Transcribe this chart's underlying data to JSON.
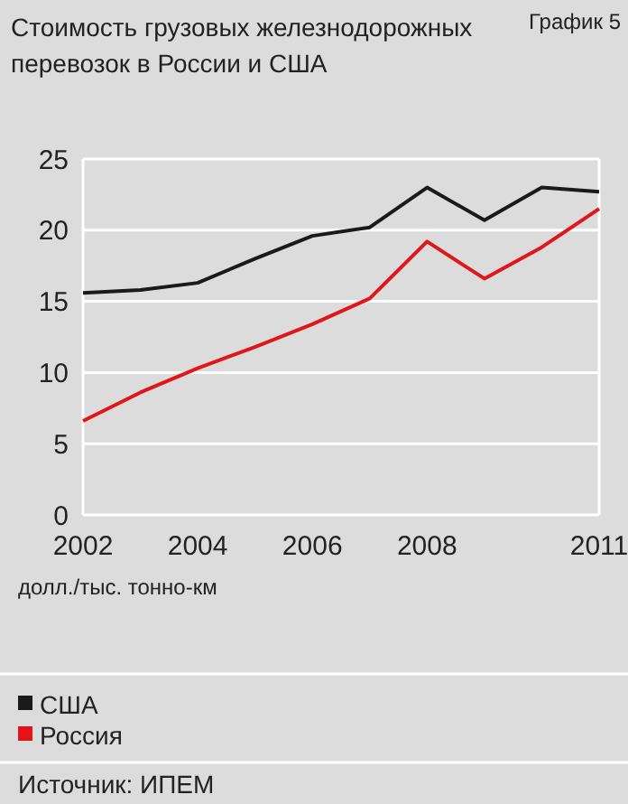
{
  "chart_data": {
    "type": "line",
    "title": "Стоимость грузовых железнодорожных перевозок в России и США",
    "ylabel": "долл./тыс. тонно-км",
    "annotations": [
      "График 5",
      "Источник: ИПЕМ"
    ],
    "x": [
      2002,
      2003,
      2004,
      2005,
      2006,
      2007,
      2008,
      2009,
      2010,
      2011
    ],
    "series": [
      {
        "name": "США",
        "color": "#1a1a1a",
        "values": [
          15.6,
          15.8,
          16.3,
          18.0,
          19.6,
          20.2,
          23.0,
          20.7,
          23.0,
          22.7
        ]
      },
      {
        "name": "Россия",
        "color": "#e0161b",
        "values": [
          6.6,
          8.6,
          10.3,
          11.8,
          13.4,
          15.2,
          19.2,
          16.6,
          18.8,
          21.5
        ]
      }
    ],
    "xlim": [
      2002,
      2011
    ],
    "xticks": [
      2002,
      2004,
      2006,
      2008,
      2011
    ],
    "ylim": [
      0,
      25
    ],
    "yticks": [
      0,
      5,
      10,
      15,
      20,
      25
    ],
    "grid": "y",
    "legend": "bottom",
    "marker": "none",
    "line_style": "solid"
  }
}
